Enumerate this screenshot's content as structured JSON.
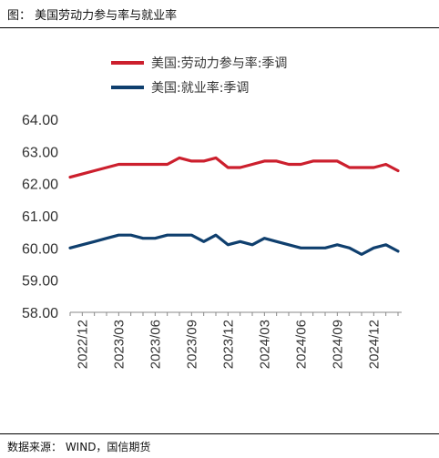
{
  "figure": {
    "title": "图：  美国劳动力参与率与就业率",
    "source": "数据来源：  WIND，国信期货"
  },
  "colors": {
    "series1": "#cc1f2d",
    "series2": "#0f3f6e",
    "axis": "#888888"
  },
  "chart_data": {
    "type": "line",
    "title": "",
    "xlabel": "",
    "ylabel": "",
    "ylim": [
      58,
      64
    ],
    "y_ticks": [
      "64.00",
      "63.00",
      "62.00",
      "61.00",
      "60.00",
      "59.00",
      "58.00"
    ],
    "x_tick_labels": [
      "2022/12",
      "2023/03",
      "2023/06",
      "2023/09",
      "2023/12",
      "2024/03",
      "2024/06",
      "2024/09",
      "2024/12"
    ],
    "x_tick_positions": [
      0,
      3,
      6,
      9,
      12,
      15,
      18,
      21,
      24
    ],
    "x": [
      "2022/11",
      "2022/12",
      "2023/01",
      "2023/02",
      "2023/03",
      "2023/04",
      "2023/05",
      "2023/06",
      "2023/07",
      "2023/08",
      "2023/09",
      "2023/10",
      "2023/11",
      "2023/12",
      "2024/01",
      "2024/02",
      "2024/03",
      "2024/04",
      "2024/05",
      "2024/06",
      "2024/07",
      "2024/08",
      "2024/09",
      "2024/10",
      "2024/11",
      "2024/12",
      "2025/01",
      "2025/02"
    ],
    "legend_position": "top-center",
    "grid": false,
    "series": [
      {
        "name": "美国:劳动力参与率:季调",
        "values": [
          62.2,
          62.3,
          62.4,
          62.5,
          62.6,
          62.6,
          62.6,
          62.6,
          62.6,
          62.8,
          62.7,
          62.7,
          62.8,
          62.5,
          62.5,
          62.6,
          62.7,
          62.7,
          62.6,
          62.6,
          62.7,
          62.7,
          62.7,
          62.5,
          62.5,
          62.5,
          62.6,
          62.4
        ]
      },
      {
        "name": "美国:就业率:季调",
        "values": [
          60.0,
          60.1,
          60.2,
          60.3,
          60.4,
          60.4,
          60.3,
          60.3,
          60.4,
          60.4,
          60.4,
          60.2,
          60.4,
          60.1,
          60.2,
          60.1,
          60.3,
          60.2,
          60.1,
          60.0,
          60.0,
          60.0,
          60.1,
          60.0,
          59.8,
          60.0,
          60.1,
          59.9
        ]
      }
    ]
  }
}
